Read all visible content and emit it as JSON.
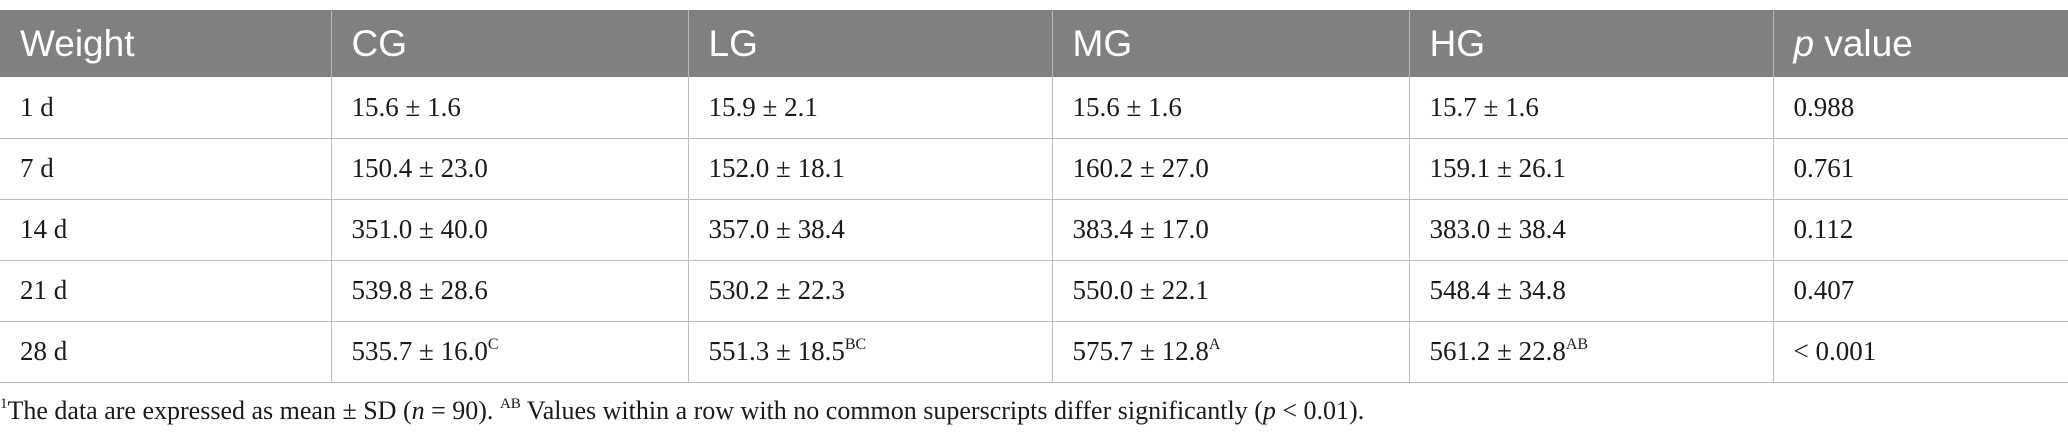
{
  "table": {
    "headers": {
      "weight": "Weight",
      "cg": "CG",
      "lg": "LG",
      "mg": "MG",
      "hg": "HG",
      "p_italic": "p",
      "p_rest": " value"
    },
    "rows": [
      {
        "day": "1 d",
        "cg": "15.6 ± 1.6",
        "cg_sup": "",
        "lg": "15.9 ± 2.1",
        "lg_sup": "",
        "mg": "15.6 ± 1.6",
        "mg_sup": "",
        "hg": "15.7 ± 1.6",
        "hg_sup": "",
        "p": "0.988"
      },
      {
        "day": "7 d",
        "cg": "150.4 ± 23.0",
        "cg_sup": "",
        "lg": "152.0 ± 18.1",
        "lg_sup": "",
        "mg": "160.2 ± 27.0",
        "mg_sup": "",
        "hg": "159.1 ± 26.1",
        "hg_sup": "",
        "p": "0.761"
      },
      {
        "day": "14 d",
        "cg": "351.0 ± 40.0",
        "cg_sup": "",
        "lg": "357.0 ± 38.4",
        "lg_sup": "",
        "mg": "383.4 ± 17.0",
        "mg_sup": "",
        "hg": "383.0 ± 38.4",
        "hg_sup": "",
        "p": "0.112"
      },
      {
        "day": "21 d",
        "cg": "539.8 ± 28.6",
        "cg_sup": "",
        "lg": "530.2 ± 22.3",
        "lg_sup": "",
        "mg": "550.0 ± 22.1",
        "mg_sup": "",
        "hg": "548.4 ± 34.8",
        "hg_sup": "",
        "p": "0.407"
      },
      {
        "day": "28 d",
        "cg": "535.7 ± 16.0",
        "cg_sup": "C",
        "lg": "551.3 ± 18.5",
        "lg_sup": "BC",
        "mg": "575.7 ± 12.8",
        "mg_sup": "A",
        "hg": "561.2 ± 22.8",
        "hg_sup": "AB",
        "p": "< 0.001"
      }
    ]
  },
  "footnote": {
    "marker": "1",
    "text_a": "The data are expressed as mean ± SD (",
    "n_italic": "n",
    "text_b": " = 90). ",
    "sup_ab": "AB",
    "text_c": " Values within a row with no common superscripts differ significantly (",
    "p_italic": "p",
    "text_d": " < 0.01)."
  }
}
